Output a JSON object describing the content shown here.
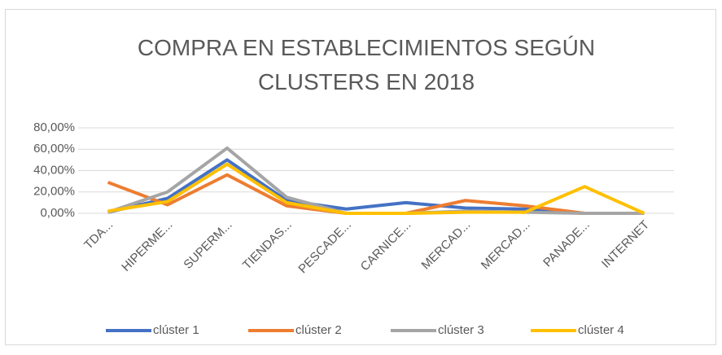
{
  "chart_data": {
    "type": "line",
    "title": "COMPRA EN ESTABLECIMIENTOS SEGÚN CLUSTERS EN 2018",
    "categories": [
      "TDA...",
      "HIPERME...",
      "SUPERM...",
      "TIENDAS...",
      "PESCADE...",
      "CARNICE...",
      "MERCAD...",
      "MERCAD...",
      "PANADE...",
      "INTERNET"
    ],
    "series": [
      {
        "name": "clúster 1",
        "color": "#4472c4",
        "values": [
          1,
          14,
          50,
          12,
          4,
          10,
          5,
          4,
          0,
          0
        ]
      },
      {
        "name": "clúster 2",
        "color": "#ed7d31",
        "values": [
          29,
          8,
          36,
          7,
          0,
          0,
          12,
          7,
          0,
          0
        ]
      },
      {
        "name": "clúster 3",
        "color": "#a5a5a5",
        "values": [
          1,
          20,
          61,
          15,
          0,
          0,
          2,
          1,
          0,
          0
        ]
      },
      {
        "name": "clúster 4",
        "color": "#ffc000",
        "values": [
          2,
          11,
          46,
          10,
          0,
          0,
          1,
          1,
          25,
          0
        ]
      }
    ],
    "ylim": [
      0,
      80
    ],
    "yticks": [
      {
        "value": 0,
        "label": "0,00%"
      },
      {
        "value": 20,
        "label": "20,00%"
      },
      {
        "value": 40,
        "label": "40,00%"
      },
      {
        "value": 60,
        "label": "60,00%"
      },
      {
        "value": 80,
        "label": "80,00%"
      }
    ],
    "grid": true,
    "legend": "bottom"
  }
}
